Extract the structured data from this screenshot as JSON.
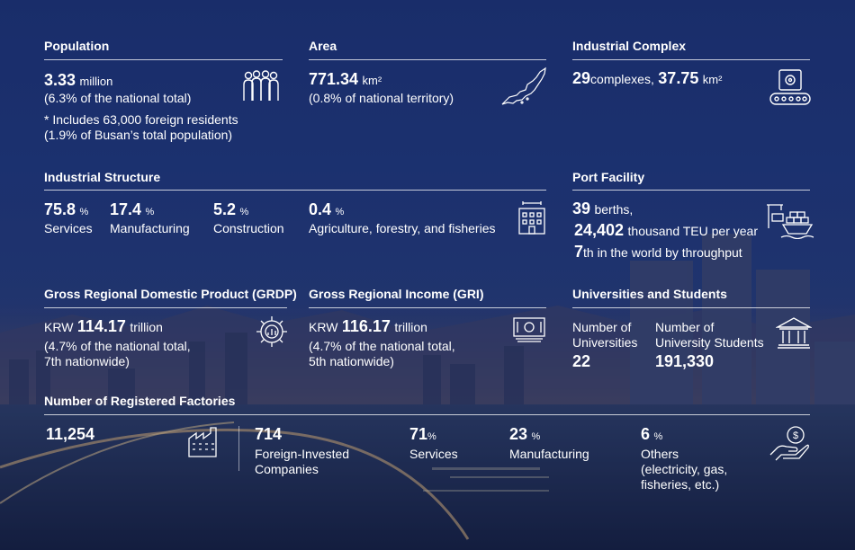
{
  "population": {
    "title": "Population",
    "value": "3.33",
    "unit": "million",
    "note": "(6.3% of the national total)",
    "foreign_line1": "* Includes 63,000 foreign residents",
    "foreign_line2": "(1.9% of Busan’s total population)",
    "icon": "people-icon"
  },
  "area": {
    "title": "Area",
    "value": "771.34",
    "unit": "km²",
    "note": "(0.8% of national territory)",
    "icon": "map-icon"
  },
  "industrial_complex": {
    "title": "Industrial Complex",
    "count": "29",
    "count_unit": "complexes,",
    "area": "37.75",
    "area_unit": "km²",
    "icon": "conveyor-gear-icon"
  },
  "industrial_structure": {
    "title": "Industrial Structure",
    "items": [
      {
        "value": "75.8",
        "unit": "%",
        "label": "Services"
      },
      {
        "value": "17.4",
        "unit": "%",
        "label": "Manufacturing"
      },
      {
        "value": "5.2",
        "unit": "%",
        "label": "Construction"
      },
      {
        "value": "0.4",
        "unit": "%",
        "label": "Agriculture, forestry, and fisheries"
      }
    ],
    "icon": "building-icon"
  },
  "port": {
    "title": "Port Facility",
    "berths": "39",
    "berths_unit": "berths,",
    "teu": "24,402",
    "teu_unit": "thousand TEU per year",
    "rank": "7",
    "rank_text": "th in the world by throughput",
    "icon": "port-ship-icon"
  },
  "grdp": {
    "title": "Gross Regional Domestic Product (GRDP)",
    "currency": "KRW",
    "value": "114.17",
    "unit": "trillion",
    "note1": "(4.7% of the national total,",
    "note2": "7th nationwide)",
    "icon": "gear-chart-icon"
  },
  "gri": {
    "title": "Gross Regional Income (GRI)",
    "currency": "KRW",
    "value": "116.17",
    "unit": "trillion",
    "note1": "(4.7% of the national total,",
    "note2": "5th nationwide)",
    "icon": "money-icon"
  },
  "universities": {
    "title": "Universities and Students",
    "uni_label1": "Number of",
    "uni_label2": "Universities",
    "uni_value": "22",
    "stu_label1": "Number of",
    "stu_label2": "University Students",
    "stu_value": "191,330",
    "icon": "university-icon"
  },
  "factories": {
    "title": "Number of Registered Factories",
    "total": "11,254",
    "foreign_value": "714",
    "foreign_label1": "Foreign-Invested",
    "foreign_label2": "Companies",
    "services_value": "71",
    "services_unit": "%",
    "services_label": "Services",
    "manufacturing_value": "23",
    "manufacturing_unit": "%",
    "manufacturing_label": "Manufacturing",
    "others_value": "6",
    "others_unit": "%",
    "others_label1": "Others",
    "others_label2": "(electricity, gas,",
    "others_label3": "fisheries, etc.)",
    "icons": [
      "factory-icon",
      "hand-money-icon"
    ]
  }
}
